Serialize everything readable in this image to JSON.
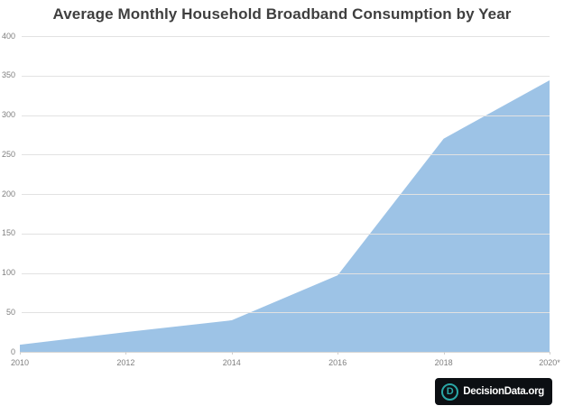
{
  "chart_data": {
    "type": "area",
    "title": "Average Monthly Household Broadband Consumption by Year",
    "x": [
      2010,
      2012,
      2014,
      2016,
      2018,
      2020
    ],
    "x_tick_labels": [
      "2010",
      "2012",
      "2014",
      "2016",
      "2018",
      "2020*"
    ],
    "values": [
      9,
      25,
      40,
      97,
      270,
      344
    ],
    "xlabel": "",
    "ylabel": "",
    "ylim": [
      0,
      400
    ],
    "y_ticks": [
      400,
      350,
      300,
      250,
      200,
      150,
      100,
      50,
      0
    ],
    "grid": true,
    "legend": "none",
    "fill_color": "#9DC3E6"
  },
  "branding": {
    "logo_text": "DecisionData.org",
    "logo_icon_letter": "D",
    "logo_bg": "#0C0F13",
    "logo_accent": "#2AA7A7",
    "logo_text_color": "#FFFFFF"
  },
  "colors": {
    "title": "#3F3F3F",
    "axis_label": "#7F7F7F",
    "gridline": "#E2E2E2",
    "axis_line": "#D6D6D6"
  }
}
